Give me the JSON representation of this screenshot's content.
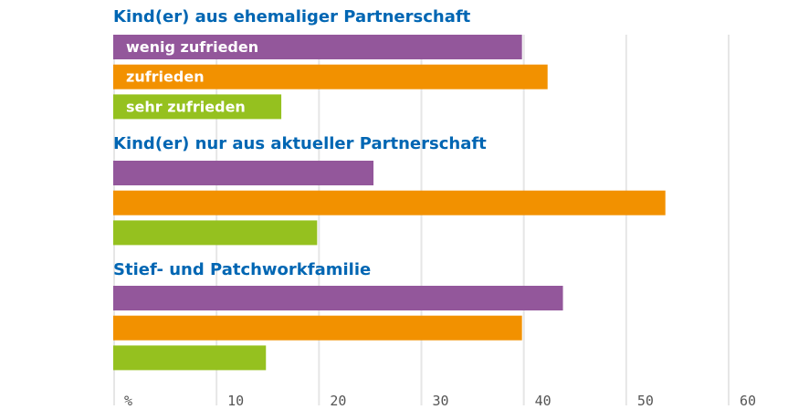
{
  "chart_data": {
    "type": "bar",
    "orientation": "horizontal",
    "groups": [
      "Kind(er) aus ehemaliger Partnerschaft",
      "Kind(er) nur aus aktueller Partnerschaft",
      "Stief- und Patchworkfamilie"
    ],
    "series": [
      {
        "name": "wenig zufrieden",
        "color": "#93579b",
        "values": [
          40,
          25.5,
          44
        ]
      },
      {
        "name": "zufrieden",
        "color": "#f29100",
        "values": [
          42.5,
          54,
          40
        ]
      },
      {
        "name": "sehr zufrieden",
        "color": "#95c11f",
        "values": [
          16.5,
          20,
          15
        ]
      }
    ],
    "unit_label": "%",
    "x_ticks": [
      "10",
      "20",
      "30",
      "40",
      "50",
      "60"
    ],
    "xlim": [
      0,
      60
    ],
    "grid": true,
    "legend": "inside first group bars",
    "title_color": "#0066b3"
  }
}
